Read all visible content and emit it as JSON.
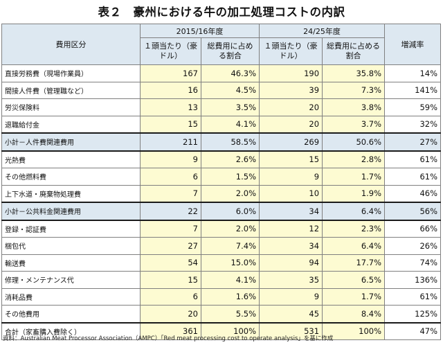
{
  "title": "表２　豪州における牛の加工処理コストの内訳",
  "header": {
    "category": "費用区分",
    "period1": "2015/16年度",
    "period2": "24/25年度",
    "per_head": "１頭当たり（豪ドル）",
    "share": "総費用に占める割合",
    "growth": "増減率"
  },
  "rows": [
    {
      "name": "直接労務費（現場作業員）",
      "v1": "167",
      "s1": "46.3%",
      "v2": "190",
      "s2": "35.8%",
      "g": "14%"
    },
    {
      "name": "間接人件費（管理職など）",
      "v1": "16",
      "s1": "4.5%",
      "v2": "39",
      "s2": "7.3%",
      "g": "141%"
    },
    {
      "name": "労災保険料",
      "v1": "13",
      "s1": "3.5%",
      "v2": "20",
      "s2": "3.8%",
      "g": "59%"
    },
    {
      "name": "退職給付金",
      "v1": "15",
      "s1": "4.1%",
      "v2": "20",
      "s2": "3.7%",
      "g": "32%"
    },
    {
      "name": "小計－人件費関連費用",
      "v1": "211",
      "s1": "58.5%",
      "v2": "269",
      "s2": "50.6%",
      "g": "27%"
    },
    {
      "name": "光熱費",
      "v1": "9",
      "s1": "2.6%",
      "v2": "15",
      "s2": "2.8%",
      "g": "61%"
    },
    {
      "name": "その他燃料費",
      "v1": "6",
      "s1": "1.5%",
      "v2": "9",
      "s2": "1.7%",
      "g": "61%"
    },
    {
      "name": "上下水道・廃棄物処理費",
      "v1": "7",
      "s1": "2.0%",
      "v2": "10",
      "s2": "1.9%",
      "g": "46%"
    },
    {
      "name": "小計－公共料金関連費用",
      "v1": "22",
      "s1": "6.0%",
      "v2": "34",
      "s2": "6.4%",
      "g": "56%"
    },
    {
      "name": "登録・認証費",
      "v1": "7",
      "s1": "2.0%",
      "v2": "12",
      "s2": "2.3%",
      "g": "66%"
    },
    {
      "name": "梱包代",
      "v1": "27",
      "s1": "7.4%",
      "v2": "34",
      "s2": "6.4%",
      "g": "26%"
    },
    {
      "name": "輸送費",
      "v1": "54",
      "s1": "15.0%",
      "v2": "94",
      "s2": "17.7%",
      "g": "74%"
    },
    {
      "name": "修理・メンテナンス代",
      "v1": "15",
      "s1": "4.1%",
      "v2": "35",
      "s2": "6.5%",
      "g": "136%"
    },
    {
      "name": "消耗品費",
      "v1": "6",
      "s1": "1.6%",
      "v2": "9",
      "s2": "1.7%",
      "g": "61%"
    },
    {
      "name": "その他費用",
      "v1": "20",
      "s1": "5.5%",
      "v2": "45",
      "s2": "8.4%",
      "g": "125%"
    },
    {
      "name": "合計（家畜購入費除く）",
      "v1": "361",
      "s1": "100%",
      "v2": "531",
      "s2": "100%",
      "g": "47%"
    }
  ],
  "source": "資料：Australian Meat Processor Association（AMPC）「Red meat processing cost to operate analysis」を基に作成",
  "colors": {
    "value_fill": "#fdfbd2",
    "header_fill": "#dde8f1",
    "border": "#7f7f7f"
  }
}
